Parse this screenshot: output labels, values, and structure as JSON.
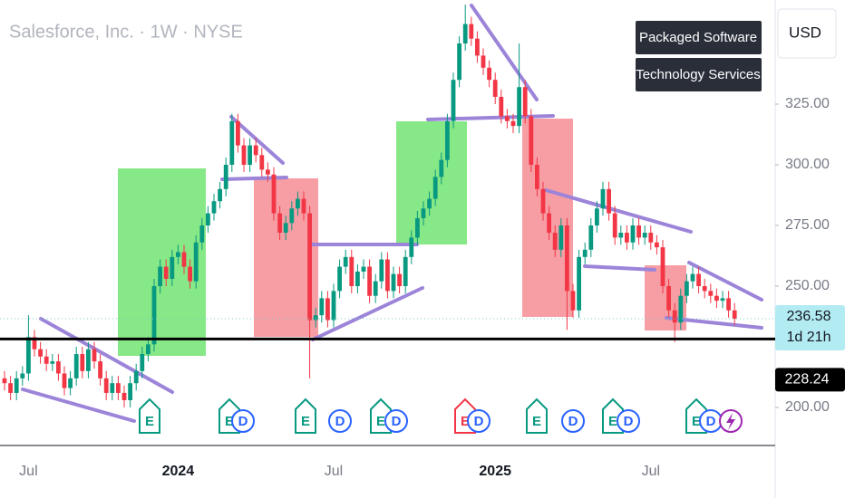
{
  "chart_data": {
    "type": "candlestick",
    "title": "Salesforce, Inc. · 1W · NYSE",
    "currency": "USD",
    "tags": [
      "Packaged Software",
      "Technology Services"
    ],
    "categories": [
      null,
      null,
      null,
      null,
      "Jul",
      null,
      null,
      null,
      null,
      null,
      null,
      null,
      null,
      null,
      null,
      null,
      null,
      null,
      null,
      null,
      null,
      null,
      null,
      null,
      null,
      null,
      null,
      null,
      null,
      "2024",
      null,
      null,
      null,
      null,
      null,
      null,
      null,
      null,
      null,
      null,
      null,
      null,
      null,
      null,
      null,
      null,
      null,
      null,
      null,
      null,
      null,
      null,
      null,
      null,
      null,
      "Jul",
      null,
      null,
      null,
      null,
      null,
      null,
      null,
      null,
      null,
      null,
      null,
      null,
      null,
      null,
      null,
      null,
      null,
      null,
      null,
      null,
      null,
      null,
      null,
      null,
      null,
      null,
      "2025",
      null,
      null,
      null,
      null,
      null,
      null,
      null,
      null,
      null,
      null,
      null,
      null,
      null,
      null,
      null,
      null,
      null,
      null,
      null,
      null,
      null,
      null,
      null,
      null,
      null,
      "Jul",
      null,
      null,
      null,
      null,
      null,
      null,
      null,
      null,
      null,
      null,
      null,
      null,
      null,
      null
    ],
    "open": [
      212,
      210,
      206,
      212,
      214,
      229,
      224,
      221,
      218,
      219,
      214,
      208,
      212,
      222,
      215,
      224,
      219,
      212,
      206,
      210,
      206,
      203,
      210,
      215,
      222,
      226,
      250,
      258,
      253,
      262,
      264,
      258,
      252,
      268,
      275,
      280,
      285,
      290,
      300,
      318,
      308,
      300,
      308,
      304,
      298,
      296,
      280,
      272,
      276,
      282,
      286,
      280,
      236,
      238,
      245,
      236,
      248,
      258,
      262,
      250,
      256,
      258,
      246,
      252,
      261,
      248,
      255,
      250,
      262,
      270,
      278,
      282,
      286,
      295,
      302,
      318,
      335,
      350,
      358,
      352,
      345,
      340,
      335,
      328,
      320,
      318,
      316,
      332,
      320,
      300,
      290,
      280,
      272,
      265,
      275,
      248,
      240,
      262,
      265,
      275,
      282,
      290,
      280,
      270,
      272,
      268,
      275,
      270,
      272,
      268,
      266,
      250,
      240,
      235,
      246,
      252,
      255,
      250,
      248,
      246,
      244,
      245,
      240
    ],
    "high": [
      215,
      213,
      215,
      217,
      238,
      232,
      227,
      224,
      222,
      222,
      217,
      215,
      225,
      225,
      227,
      227,
      222,
      215,
      213,
      213,
      209,
      213,
      218,
      225,
      229,
      253,
      261,
      261,
      265,
      267,
      267,
      261,
      271,
      278,
      283,
      288,
      293,
      303,
      321,
      321,
      311,
      311,
      311,
      307,
      301,
      299,
      283,
      279,
      285,
      289,
      289,
      283,
      241,
      248,
      248,
      251,
      261,
      265,
      265,
      259,
      261,
      261,
      255,
      264,
      264,
      258,
      258,
      265,
      273,
      281,
      285,
      289,
      298,
      305,
      321,
      338,
      353,
      366,
      361,
      355,
      348,
      343,
      338,
      331,
      323,
      321,
      350,
      335,
      323,
      303,
      293,
      283,
      275,
      278,
      278,
      251,
      265,
      268,
      278,
      285,
      293,
      293,
      283,
      275,
      275,
      278,
      278,
      275,
      275,
      271,
      269,
      253,
      243,
      249,
      255,
      258,
      258,
      253,
      251,
      249,
      248,
      248,
      243
    ],
    "low": [
      207,
      203,
      203,
      209,
      211,
      221,
      218,
      215,
      215,
      211,
      205,
      205,
      209,
      212,
      212,
      216,
      209,
      203,
      203,
      203,
      200,
      200,
      207,
      212,
      219,
      223,
      247,
      250,
      250,
      259,
      255,
      249,
      249,
      265,
      272,
      277,
      282,
      287,
      297,
      305,
      297,
      297,
      301,
      295,
      293,
      277,
      269,
      269,
      273,
      279,
      277,
      212,
      233,
      235,
      233,
      233,
      245,
      255,
      247,
      247,
      253,
      243,
      243,
      249,
      245,
      245,
      247,
      247,
      259,
      267,
      275,
      279,
      283,
      292,
      299,
      315,
      332,
      347,
      349,
      342,
      337,
      332,
      325,
      317,
      315,
      313,
      313,
      317,
      297,
      287,
      277,
      269,
      262,
      262,
      232,
      237,
      237,
      259,
      262,
      272,
      279,
      277,
      267,
      267,
      265,
      265,
      267,
      267,
      265,
      263,
      247,
      237,
      227,
      232,
      243,
      249,
      247,
      245,
      243,
      241,
      241,
      237,
      234
    ],
    "close": [
      210,
      206,
      212,
      214,
      229,
      224,
      221,
      218,
      219,
      214,
      208,
      212,
      222,
      215,
      224,
      219,
      212,
      206,
      210,
      206,
      203,
      210,
      215,
      222,
      226,
      250,
      258,
      253,
      262,
      264,
      258,
      252,
      268,
      275,
      280,
      285,
      290,
      300,
      318,
      308,
      300,
      308,
      304,
      298,
      296,
      280,
      272,
      276,
      282,
      286,
      280,
      236,
      238,
      245,
      236,
      248,
      258,
      262,
      250,
      256,
      258,
      246,
      252,
      261,
      248,
      255,
      250,
      262,
      270,
      278,
      282,
      286,
      295,
      302,
      318,
      335,
      350,
      358,
      352,
      345,
      340,
      335,
      328,
      320,
      318,
      316,
      332,
      320,
      300,
      290,
      280,
      272,
      265,
      275,
      248,
      240,
      262,
      265,
      275,
      282,
      290,
      280,
      270,
      272,
      268,
      275,
      270,
      272,
      268,
      266,
      250,
      240,
      235,
      246,
      252,
      255,
      250,
      248,
      246,
      244,
      245,
      240,
      236.58
    ],
    "up_color": "#089981",
    "down_color": "#f23645",
    "ylim": [
      184.33,
      367.91
    ],
    "yticks": [
      {
        "value": 200,
        "label": "200.00"
      },
      {
        "value": 250,
        "label": "250.00"
      },
      {
        "value": 275,
        "label": "275.00"
      },
      {
        "value": 300,
        "label": "300.00"
      },
      {
        "value": 325,
        "label": "325.00"
      }
    ],
    "grid": false,
    "last_price": 236.58,
    "countdown": "1d 21h",
    "level": 228.24,
    "events": [
      "E",
      "E",
      "D",
      "E",
      "D",
      "E",
      "D",
      "E",
      "D",
      "E",
      "D",
      "E",
      "D",
      "E",
      "D"
    ]
  }
}
